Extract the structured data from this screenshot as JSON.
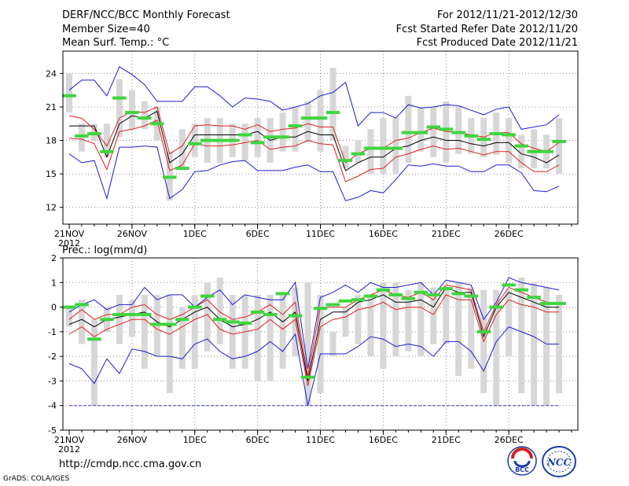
{
  "header": {
    "title": "DERF/NCC/BCC Monthly Forecast",
    "member_size": "Member Size=40",
    "variable": "Mean Surf. Temp.: °C",
    "period": "For 2012/11/21-2012/12/30",
    "started": "Fcst Started Refer Date 2012/11/20",
    "produced": "Fcst Produced Date 2012/11/21"
  },
  "footer": {
    "url": "http://cmdp.ncc.cma.gov.cn",
    "credit": "GrADS: COLA/IGES",
    "logo_bcc": "BCC",
    "logo_ncc": "NCC"
  },
  "colors": {
    "box": "#d7d7d7",
    "green": "#3ed63e",
    "mean": "#000000",
    "inner": "#e02020",
    "outer": "#1c1cd8",
    "grid": "#8c8c8c",
    "baseline": "#3a3ad0"
  },
  "chart_data": [
    {
      "type": "box",
      "title": "Mean Surf. Temp.: °C",
      "ylabel": "°C",
      "ylim": [
        10.5,
        26
      ],
      "yticks": [
        12,
        15,
        18,
        21,
        24
      ],
      "xlim": [
        0.5,
        41.5
      ],
      "xticks": [
        {
          "day": 1,
          "label": "21NOV",
          "sublabel": "2012"
        },
        {
          "day": 6,
          "label": "26NOV"
        },
        {
          "day": 11,
          "label": "1DEC"
        },
        {
          "day": 16,
          "label": "6DEC"
        },
        {
          "day": 21,
          "label": "11DEC"
        },
        {
          "day": 26,
          "label": "16DEC"
        },
        {
          "day": 31,
          "label": "21DEC"
        },
        {
          "day": 36,
          "label": "26DEC"
        }
      ],
      "days": [
        1,
        2,
        3,
        4,
        5,
        6,
        7,
        8,
        9,
        10,
        11,
        12,
        13,
        14,
        15,
        16,
        17,
        18,
        19,
        20,
        21,
        22,
        23,
        24,
        25,
        26,
        27,
        28,
        29,
        30,
        31,
        32,
        33,
        34,
        35,
        36,
        37,
        38,
        39,
        40
      ],
      "box_low": [
        20.5,
        17.0,
        18.0,
        16.5,
        18.3,
        19.0,
        19.0,
        18.0,
        12.6,
        15.5,
        16.5,
        16.0,
        16.0,
        16.5,
        16.2,
        16.5,
        16.0,
        17.0,
        17.0,
        17.8,
        17.0,
        18.0,
        15.5,
        16.0,
        15.0,
        15.0,
        15.0,
        16.0,
        17.0,
        16.5,
        16.0,
        16.8,
        16.8,
        16.5,
        16.7,
        16.0,
        15.5,
        15.5,
        15.5,
        15.0
      ],
      "box_high": [
        24.0,
        19.5,
        19.5,
        19.5,
        23.5,
        22.5,
        21.5,
        21.0,
        17.0,
        19.0,
        19.5,
        20.0,
        20.0,
        19.5,
        19.5,
        20.0,
        20.0,
        20.5,
        21.0,
        21.5,
        22.5,
        24.5,
        17.5,
        18.0,
        19.0,
        20.0,
        20.0,
        22.0,
        21.0,
        21.0,
        21.5,
        21.0,
        20.0,
        20.0,
        20.5,
        20.0,
        18.5,
        19.0,
        18.5,
        20.0
      ],
      "ens_mean": [
        22.0,
        18.4,
        18.6,
        17.0,
        21.8,
        20.5,
        20.0,
        19.5,
        14.7,
        15.5,
        17.7,
        18.0,
        18.0,
        18.0,
        18.5,
        17.8,
        18.3,
        18.3,
        19.3,
        20.0,
        20.0,
        20.5,
        16.2,
        16.8,
        17.3,
        17.3,
        17.3,
        18.7,
        18.7,
        19.2,
        19.0,
        18.7,
        18.4,
        18.1,
        18.6,
        18.5,
        17.5,
        17.0,
        17.0,
        17.9
      ],
      "series": [
        {
          "name": "ensemble-median",
          "role": "mean",
          "values": [
            19.3,
            19.3,
            19.3,
            16.5,
            19.5,
            20.2,
            20.0,
            20.6,
            16.0,
            16.8,
            18.5,
            18.5,
            18.5,
            18.5,
            18.5,
            18.8,
            18.0,
            18.3,
            18.3,
            18.8,
            18.5,
            18.5,
            15.3,
            16.0,
            16.5,
            16.5,
            17.3,
            17.5,
            18.0,
            18.3,
            18.0,
            18.0,
            17.7,
            17.5,
            17.8,
            17.8,
            16.8,
            16.5,
            16.0,
            16.7
          ]
        },
        {
          "name": "upper-inner",
          "role": "inner",
          "values": [
            20.2,
            20.0,
            19.0,
            17.5,
            20.0,
            20.6,
            20.5,
            21.0,
            16.8,
            17.5,
            19.3,
            19.4,
            19.3,
            19.3,
            19.0,
            19.4,
            18.8,
            19.0,
            19.1,
            19.5,
            19.2,
            19.2,
            16.0,
            16.8,
            17.3,
            17.3,
            18.0,
            18.2,
            18.7,
            19.1,
            18.8,
            18.7,
            18.5,
            18.3,
            18.7,
            18.7,
            17.7,
            17.3,
            17.0,
            17.8
          ]
        },
        {
          "name": "lower-inner",
          "role": "inner",
          "values": [
            18.2,
            18.1,
            17.7,
            15.4,
            18.8,
            19.0,
            19.3,
            19.8,
            15.3,
            15.8,
            17.7,
            17.5,
            17.5,
            17.6,
            17.8,
            18.0,
            17.2,
            17.4,
            17.5,
            18.0,
            17.7,
            17.6,
            14.3,
            14.8,
            15.4,
            15.5,
            16.5,
            16.8,
            17.2,
            17.5,
            17.2,
            17.3,
            17.0,
            16.7,
            17.0,
            17.0,
            16.0,
            15.2,
            15.2,
            15.8
          ]
        },
        {
          "name": "ensemble-max",
          "role": "outer",
          "values": [
            22.5,
            23.4,
            23.4,
            22.0,
            24.6,
            23.9,
            23.0,
            21.5,
            21.5,
            21.5,
            22.8,
            22.8,
            22.0,
            21.0,
            21.8,
            21.7,
            21.5,
            20.7,
            21.0,
            21.3,
            22.0,
            22.3,
            23.2,
            19.3,
            20.5,
            20.5,
            20.0,
            21.2,
            20.9,
            21.0,
            21.2,
            21.1,
            20.7,
            20.3,
            20.8,
            21.0,
            19.0,
            19.2,
            19.4,
            20.3
          ]
        },
        {
          "name": "ensemble-min",
          "role": "outer",
          "values": [
            16.8,
            16.0,
            16.2,
            12.8,
            17.4,
            17.4,
            17.5,
            17.4,
            12.8,
            13.6,
            15.2,
            15.3,
            15.8,
            16.1,
            16.2,
            15.3,
            15.3,
            15.3,
            15.6,
            15.8,
            15.2,
            15.2,
            12.6,
            12.9,
            13.5,
            13.3,
            14.5,
            15.8,
            15.7,
            15.9,
            15.7,
            15.7,
            15.2,
            15.2,
            15.8,
            15.8,
            15.1,
            13.5,
            13.4,
            13.9
          ]
        }
      ]
    },
    {
      "type": "box",
      "title": "Prec.: log(mm/d)",
      "ylabel": "log(mm/d)",
      "ylim": [
        -5,
        2
      ],
      "yticks": [
        -5,
        -4,
        -3,
        -2,
        -1,
        0,
        1,
        2
      ],
      "xlim": [
        0.5,
        41.5
      ],
      "xticks": [
        {
          "day": 1,
          "label": "21NOV",
          "sublabel": "2012"
        },
        {
          "day": 6,
          "label": "26NOV"
        },
        {
          "day": 11,
          "label": "1DEC"
        },
        {
          "day": 16,
          "label": "6DEC"
        },
        {
          "day": 21,
          "label": "11DEC"
        },
        {
          "day": 26,
          "label": "16DEC"
        },
        {
          "day": 31,
          "label": "21DEC"
        },
        {
          "day": 36,
          "label": "26DEC"
        }
      ],
      "baseline": -4,
      "days": [
        1,
        2,
        3,
        4,
        5,
        6,
        7,
        8,
        9,
        10,
        11,
        12,
        13,
        14,
        15,
        16,
        17,
        18,
        19,
        20,
        21,
        22,
        23,
        24,
        25,
        26,
        27,
        28,
        29,
        30,
        31,
        32,
        33,
        34,
        35,
        36,
        37,
        38,
        39,
        40
      ],
      "box_low": [
        -0.8,
        -1.5,
        -4.0,
        -1.0,
        -1.5,
        -1.2,
        -2.5,
        -2.0,
        -3.5,
        -2.5,
        -2.5,
        -1.8,
        -1.5,
        -2.5,
        -2.5,
        -3.0,
        -3.0,
        -2.5,
        -2.0,
        -4.0,
        -3.5,
        -2.0,
        -1.2,
        -1.5,
        -2.0,
        -2.5,
        -2.0,
        -1.8,
        -2.0,
        -1.5,
        -1.5,
        -2.8,
        -2.5,
        -3.5,
        -4.0,
        -2.0,
        -3.5,
        -4.0,
        -4.0,
        -3.5
      ],
      "box_high": [
        0.0,
        0.3,
        -0.5,
        0.0,
        0.5,
        0.3,
        0.5,
        0.5,
        0.5,
        0.0,
        0.5,
        1.0,
        1.2,
        0.5,
        0.5,
        0.5,
        0.5,
        0.5,
        0.8,
        1.0,
        0.5,
        -1.0,
        0.0,
        0.5,
        0.5,
        1.0,
        1.0,
        0.7,
        1.0,
        0.8,
        0.7,
        1.0,
        0.8,
        0.7,
        0.7,
        0.7,
        1.2,
        1.0,
        0.8,
        0.5
      ],
      "ens_mean": [
        0.0,
        0.1,
        -1.3,
        -0.5,
        -0.3,
        -0.3,
        -0.3,
        -0.7,
        -0.7,
        -0.5,
        0.0,
        0.45,
        -0.5,
        -0.6,
        -0.65,
        -0.2,
        -0.3,
        0.55,
        -0.35,
        -2.85,
        -0.05,
        0.1,
        0.25,
        0.3,
        0.45,
        0.7,
        0.5,
        0.35,
        0.6,
        0.5,
        0.75,
        0.55,
        0.45,
        -1.0,
        0.0,
        0.9,
        0.7,
        0.4,
        0.15,
        0.15
      ],
      "series": [
        {
          "name": "ensemble-median",
          "role": "mean",
          "values": [
            -0.7,
            -0.5,
            -0.8,
            -0.5,
            -0.4,
            -0.3,
            -0.2,
            -0.6,
            -0.8,
            -0.5,
            -0.2,
            0.0,
            -0.5,
            -0.8,
            -0.7,
            -0.5,
            -0.2,
            -0.6,
            -0.2,
            -3.0,
            -0.5,
            -0.2,
            -0.2,
            0.2,
            0.3,
            0.5,
            0.2,
            0.2,
            0.3,
            0.0,
            0.8,
            0.6,
            0.6,
            -1.2,
            0.0,
            0.6,
            0.4,
            0.2,
            0.0,
            0.0
          ]
        },
        {
          "name": "upper-inner",
          "role": "inner",
          "values": [
            -0.5,
            -0.1,
            -0.5,
            -0.3,
            -0.3,
            0.0,
            0.1,
            -0.3,
            -0.5,
            -0.3,
            0.0,
            0.3,
            -0.2,
            -0.5,
            -0.4,
            -0.2,
            0.1,
            -0.3,
            0.2,
            -2.8,
            0.0,
            0.0,
            0.0,
            0.3,
            0.5,
            0.7,
            0.5,
            0.4,
            0.6,
            0.3,
            0.9,
            0.8,
            0.7,
            -1.0,
            0.1,
            0.8,
            0.6,
            0.4,
            0.2,
            0.1
          ]
        },
        {
          "name": "lower-inner",
          "role": "inner",
          "values": [
            -1.1,
            -0.8,
            -1.2,
            -0.9,
            -0.7,
            -0.5,
            -0.5,
            -0.9,
            -1.1,
            -0.8,
            -0.5,
            -0.3,
            -0.9,
            -1.1,
            -1.0,
            -0.9,
            -0.5,
            -0.9,
            -0.5,
            -3.2,
            -0.8,
            -0.5,
            -0.4,
            -0.1,
            0.0,
            0.2,
            -0.1,
            0.0,
            0.0,
            -0.3,
            0.5,
            0.3,
            0.3,
            -1.4,
            -0.3,
            0.3,
            0.1,
            0.0,
            -0.2,
            -0.2
          ]
        },
        {
          "name": "ensemble-max",
          "role": "outer",
          "values": [
            -0.2,
            0.1,
            0.3,
            -0.1,
            0.1,
            0.1,
            0.8,
            0.3,
            0.5,
            0.5,
            0.0,
            0.4,
            0.7,
            0.1,
            0.5,
            0.4,
            0.3,
            0.3,
            1.0,
            -2.5,
            0.4,
            0.6,
            0.9,
            0.6,
            1.0,
            0.8,
            0.8,
            0.9,
            1.0,
            0.5,
            1.1,
            1.0,
            0.9,
            -0.5,
            0.2,
            1.2,
            1.0,
            0.9,
            0.8,
            0.7
          ]
        },
        {
          "name": "ensemble-min",
          "role": "outer",
          "values": [
            -2.3,
            -2.5,
            -3.1,
            -2.1,
            -2.7,
            -1.7,
            -1.8,
            -2.0,
            -2.0,
            -2.1,
            -1.5,
            -1.3,
            -1.8,
            -2.1,
            -2.0,
            -1.8,
            -1.4,
            -1.8,
            -1.1,
            -4.0,
            -1.9,
            -1.9,
            -1.9,
            -1.6,
            -1.2,
            -1.3,
            -1.6,
            -1.5,
            -1.6,
            -2.0,
            -1.4,
            -1.4,
            -1.8,
            -2.6,
            -1.4,
            -0.8,
            -1.0,
            -1.2,
            -1.5,
            -1.5
          ]
        }
      ]
    }
  ]
}
